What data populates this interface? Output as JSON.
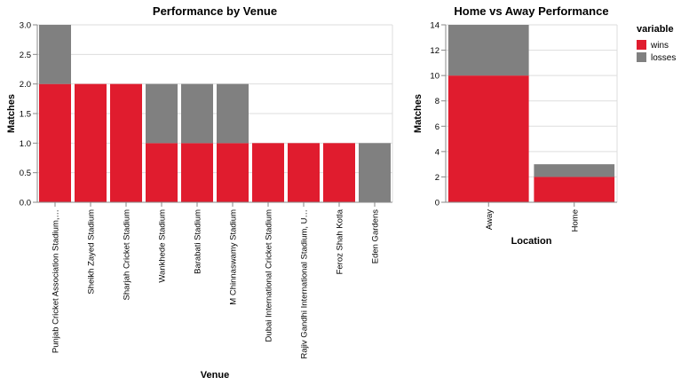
{
  "colors": {
    "wins": "#e01c2e",
    "losses": "#808080"
  },
  "legend": {
    "title": "variable",
    "items": [
      {
        "label": "wins",
        "color": "#e01c2e"
      },
      {
        "label": "losses",
        "color": "#808080"
      }
    ]
  },
  "chart_data": [
    {
      "type": "bar",
      "stacked": true,
      "title": "Performance by Venue",
      "xlabel": "Venue",
      "ylabel": "Matches",
      "ylim": [
        0,
        3
      ],
      "yticks": [
        0.0,
        0.5,
        1.0,
        1.5,
        2.0,
        2.5,
        3.0
      ],
      "ytick_labels": [
        "0.0",
        "0.5",
        "1.0",
        "1.5",
        "2.0",
        "2.5",
        "3.0"
      ],
      "grid": true,
      "categories": [
        "Punjab Cricket Association Stadium,…",
        "Sheikh Zayed Stadium",
        "Sharjah Cricket Stadium",
        "Wankhede Stadium",
        "Barabati Stadium",
        "M Chinnaswamy Stadium",
        "Dubai International Cricket Stadium",
        "Rajiv Gandhi International Stadium, U…",
        "Feroz Shah Kotla",
        "Eden Gardens"
      ],
      "series": [
        {
          "name": "wins",
          "values": [
            2,
            2,
            2,
            1,
            1,
            1,
            1,
            1,
            1,
            0
          ]
        },
        {
          "name": "losses",
          "values": [
            1,
            0,
            0,
            1,
            1,
            1,
            0,
            0,
            0,
            1
          ]
        }
      ]
    },
    {
      "type": "bar",
      "stacked": true,
      "title": "Home vs Away Performance",
      "xlabel": "Location",
      "ylabel": "Matches",
      "ylim": [
        0,
        14
      ],
      "yticks": [
        0,
        2,
        4,
        6,
        8,
        10,
        12,
        14
      ],
      "ytick_labels": [
        "0",
        "2",
        "4",
        "6",
        "8",
        "10",
        "12",
        "14"
      ],
      "grid": true,
      "legend_position": "right",
      "categories": [
        "Away",
        "Home"
      ],
      "series": [
        {
          "name": "wins",
          "values": [
            10,
            2
          ]
        },
        {
          "name": "losses",
          "values": [
            4,
            1
          ]
        }
      ]
    }
  ]
}
